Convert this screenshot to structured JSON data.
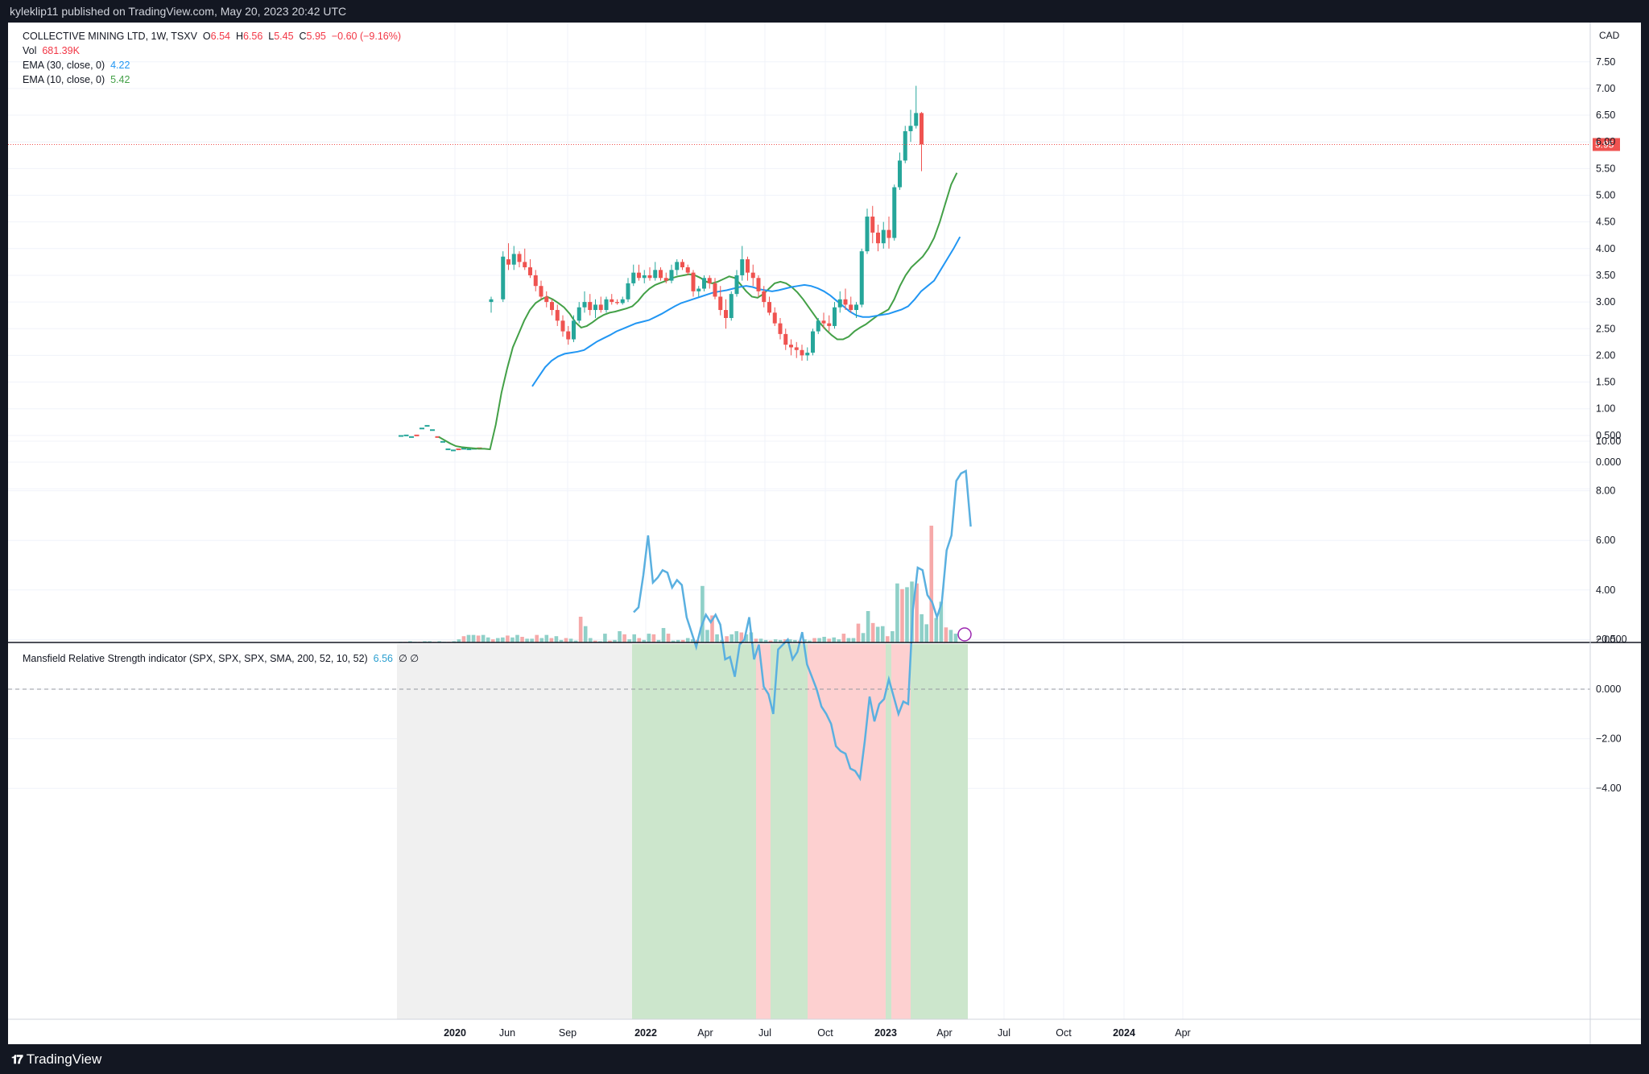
{
  "header": {
    "published": "kyleklip11 published on TradingView.com, May 20, 2023 20:42 UTC"
  },
  "footer": {
    "brand": "TradingView"
  },
  "legend": {
    "symbol_line": "COLLECTIVE MINING LTD, 1W, TSXV",
    "open_label": "O",
    "open": "6.54",
    "high_label": "H",
    "high": "6.56",
    "low_label": "L",
    "low": "5.45",
    "close_label": "C",
    "close": "5.95",
    "change": "−0.60 (−9.16%)",
    "vol_label": "Vol",
    "vol": "681.39K",
    "ema30_label": "EMA (30, close, 0)",
    "ema30": "4.22",
    "ema10_label": "EMA (10, close, 0)",
    "ema10": "5.42",
    "mrs_label": "Mansfield Relative Strength indicator (SPX, SPX, SPX, SMA, 200, 52, 10, 52)",
    "mrs_value": "6.56",
    "mrs_extra": "∅  ∅"
  },
  "chart_data": [
    {
      "type": "candlestick",
      "currency": "CAD",
      "last_price": "5.95",
      "price_ticks": [
        "7.50",
        "7.00",
        "6.50",
        "6.00",
        "5.50",
        "5.00",
        "4.50",
        "4.00",
        "3.50",
        "3.00",
        "2.50",
        "2.00",
        "1.50",
        "1.00",
        "0.500",
        "0.000",
        "−0.500"
      ],
      "x_tick_labels": [
        "2020",
        "Jun",
        "Sep",
        "2022",
        "Apr",
        "Jul",
        "Oct",
        "2023",
        "Apr",
        "Jul",
        "Oct",
        "2024",
        "Apr"
      ],
      "candles_ohlc": [
        [
          3.0,
          3.1,
          2.8,
          3.05
        ],
        [
          3.05,
          3.95,
          3.0,
          3.85
        ],
        [
          3.8,
          4.1,
          3.6,
          3.7
        ],
        [
          3.7,
          4.05,
          3.6,
          3.9
        ],
        [
          3.9,
          3.95,
          3.65,
          3.75
        ],
        [
          3.75,
          4.0,
          3.6,
          3.65
        ],
        [
          3.65,
          3.8,
          3.45,
          3.5
        ],
        [
          3.5,
          3.6,
          3.2,
          3.3
        ],
        [
          3.3,
          3.4,
          3.05,
          3.1
        ],
        [
          3.1,
          3.2,
          2.9,
          3.0
        ],
        [
          3.0,
          3.05,
          2.75,
          2.85
        ],
        [
          2.85,
          2.95,
          2.55,
          2.65
        ],
        [
          2.65,
          2.75,
          2.35,
          2.45
        ],
        [
          2.45,
          2.55,
          2.2,
          2.3
        ],
        [
          2.3,
          2.75,
          2.25,
          2.65
        ],
        [
          2.65,
          3.0,
          2.6,
          2.9
        ],
        [
          2.9,
          3.2,
          2.8,
          3.0
        ],
        [
          3.0,
          3.15,
          2.75,
          2.85
        ],
        [
          2.85,
          3.05,
          2.7,
          2.95
        ],
        [
          2.95,
          3.1,
          2.8,
          2.85
        ],
        [
          2.85,
          3.1,
          2.8,
          3.05
        ],
        [
          3.05,
          3.15,
          2.95,
          3.0
        ],
        [
          3.0,
          3.05,
          2.95,
          2.98
        ],
        [
          2.98,
          3.1,
          2.95,
          3.05
        ],
        [
          3.05,
          3.45,
          3.0,
          3.35
        ],
        [
          3.35,
          3.7,
          3.3,
          3.55
        ],
        [
          3.55,
          3.7,
          3.4,
          3.45
        ],
        [
          3.45,
          3.6,
          3.35,
          3.5
        ],
        [
          3.5,
          3.65,
          3.4,
          3.45
        ],
        [
          3.45,
          3.75,
          3.4,
          3.6
        ],
        [
          3.6,
          3.65,
          3.4,
          3.45
        ],
        [
          3.45,
          3.55,
          3.35,
          3.4
        ],
        [
          3.4,
          3.7,
          3.35,
          3.6
        ],
        [
          3.6,
          3.8,
          3.5,
          3.75
        ],
        [
          3.75,
          3.8,
          3.6,
          3.65
        ],
        [
          3.65,
          3.7,
          3.5,
          3.55
        ],
        [
          3.55,
          3.6,
          3.1,
          3.2
        ],
        [
          3.2,
          3.3,
          3.1,
          3.25
        ],
        [
          3.25,
          3.5,
          3.2,
          3.45
        ],
        [
          3.45,
          3.5,
          3.25,
          3.35
        ],
        [
          3.35,
          3.45,
          3.05,
          3.1
        ],
        [
          3.1,
          3.3,
          2.75,
          2.85
        ],
        [
          2.85,
          3.05,
          2.5,
          2.7
        ],
        [
          2.7,
          3.2,
          2.65,
          3.15
        ],
        [
          3.15,
          3.6,
          3.1,
          3.5
        ],
        [
          3.5,
          4.05,
          3.4,
          3.8
        ],
        [
          3.8,
          3.85,
          3.4,
          3.55
        ],
        [
          3.55,
          3.7,
          3.3,
          3.45
        ],
        [
          3.45,
          3.5,
          3.1,
          3.2
        ],
        [
          3.2,
          3.3,
          2.9,
          3.0
        ],
        [
          3.0,
          3.1,
          2.75,
          2.8
        ],
        [
          2.8,
          2.9,
          2.55,
          2.6
        ],
        [
          2.6,
          2.7,
          2.3,
          2.4
        ],
        [
          2.4,
          2.5,
          2.1,
          2.2
        ],
        [
          2.2,
          2.3,
          2.0,
          2.15
        ],
        [
          2.15,
          2.25,
          1.95,
          2.1
        ],
        [
          2.1,
          2.2,
          1.9,
          2.0
        ],
        [
          2.0,
          2.15,
          1.9,
          2.05
        ],
        [
          2.05,
          2.5,
          2.0,
          2.45
        ],
        [
          2.45,
          2.7,
          2.4,
          2.65
        ],
        [
          2.65,
          2.8,
          2.5,
          2.6
        ],
        [
          2.6,
          2.75,
          2.45,
          2.55
        ],
        [
          2.55,
          3.0,
          2.5,
          2.9
        ],
        [
          2.9,
          3.2,
          2.8,
          3.05
        ],
        [
          3.05,
          3.25,
          2.85,
          2.95
        ],
        [
          2.95,
          3.1,
          2.8,
          2.85
        ],
        [
          2.85,
          3.0,
          2.7,
          2.95
        ],
        [
          2.95,
          4.0,
          2.9,
          3.95
        ],
        [
          3.95,
          4.75,
          3.9,
          4.6
        ],
        [
          4.6,
          4.8,
          4.1,
          4.3
        ],
        [
          4.3,
          4.45,
          3.95,
          4.1
        ],
        [
          4.1,
          4.5,
          4.0,
          4.35
        ],
        [
          4.35,
          4.6,
          4.0,
          4.2
        ],
        [
          4.2,
          5.2,
          4.15,
          5.15
        ],
        [
          5.15,
          5.8,
          5.1,
          5.65
        ],
        [
          5.65,
          6.3,
          5.6,
          6.2
        ],
        [
          6.2,
          6.6,
          6.0,
          6.3
        ],
        [
          6.3,
          7.05,
          6.25,
          6.54
        ],
        [
          6.54,
          6.56,
          5.45,
          5.95
        ]
      ],
      "early_ticks": [
        0.49,
        0.5,
        0.47,
        0.5,
        0.63,
        0.68,
        0.6,
        0.47,
        0.38,
        0.24,
        0.22,
        0.24,
        0.25,
        0.24,
        0.25,
        0.26
      ],
      "ema10_values": [
        0.47,
        0.41,
        0.35,
        0.3,
        0.28,
        0.27,
        0.26,
        0.25,
        0.25,
        0.24,
        0.7,
        1.3,
        1.75,
        2.15,
        2.4,
        2.65,
        2.85,
        2.98,
        3.05,
        3.1,
        3.05,
        2.98,
        2.9,
        2.78,
        2.62,
        2.52,
        2.55,
        2.62,
        2.7,
        2.76,
        2.8,
        2.82,
        2.85,
        2.88,
        2.92,
        3.02,
        3.15,
        3.25,
        3.32,
        3.36,
        3.4,
        3.45,
        3.48,
        3.5,
        3.52,
        3.5,
        3.45,
        3.38,
        3.35,
        3.38,
        3.43,
        3.48,
        3.45,
        3.33,
        3.2,
        3.1,
        3.08,
        3.15,
        3.25,
        3.35,
        3.38,
        3.35,
        3.28,
        3.18,
        3.05,
        2.9,
        2.75,
        2.6,
        2.48,
        2.38,
        2.3,
        2.3,
        2.35,
        2.45,
        2.52,
        2.58,
        2.66,
        2.74,
        2.8,
        2.86,
        3.05,
        3.3,
        3.5,
        3.65,
        3.75,
        3.85,
        4.0,
        4.2,
        4.5,
        4.85,
        5.2,
        5.42
      ],
      "ema30_values": [
        1.42,
        1.6,
        1.78,
        1.9,
        1.98,
        2.03,
        2.05,
        2.07,
        2.1,
        2.18,
        2.26,
        2.32,
        2.38,
        2.45,
        2.5,
        2.55,
        2.6,
        2.63,
        2.66,
        2.72,
        2.78,
        2.85,
        2.92,
        2.98,
        3.02,
        3.06,
        3.1,
        3.14,
        3.18,
        3.2,
        3.22,
        3.25,
        3.28,
        3.3,
        3.28,
        3.24,
        3.22,
        3.2,
        3.22,
        3.25,
        3.28,
        3.3,
        3.32,
        3.3,
        3.26,
        3.2,
        3.12,
        3.02,
        2.92,
        2.82,
        2.75,
        2.72,
        2.72,
        2.74,
        2.76,
        2.78,
        2.82,
        2.86,
        2.92,
        3.05,
        3.2,
        3.3,
        3.4,
        3.6,
        3.8,
        4.0,
        4.22
      ],
      "volume_bars_M": [
        0.01,
        0.01,
        0.02,
        0.01,
        0.01,
        0.02,
        0.02,
        0.01,
        0.02,
        0.01,
        0.01,
        0.02,
        0.05,
        0.1,
        0.12,
        0.12,
        0.11,
        0.12,
        0.08,
        0.05,
        0.07,
        0.08,
        0.11,
        0.08,
        0.12,
        0.09,
        0.06,
        0.06,
        0.12,
        0.07,
        0.12,
        0.07,
        0.1,
        0.04,
        0.07,
        0.06,
        0.03,
        0.41,
        0.26,
        0.07,
        0.03,
        0.02,
        0.14,
        0.03,
        0.04,
        0.18,
        0.13,
        0.05,
        0.13,
        0.07,
        0.04,
        0.14,
        0.13,
        0.04,
        0.23,
        0.14,
        0.03,
        0.04,
        0.04,
        0.07,
        0.05,
        0.04,
        0.9,
        0.2,
        0.43,
        0.13,
        0.04,
        0.1,
        0.13,
        0.18,
        0.16,
        0.13,
        0.16,
        0.06,
        0.06,
        0.04,
        0.03,
        0.05,
        0.04,
        0.05,
        0.05,
        0.04,
        0.03,
        0.05,
        0.03,
        0.07,
        0.07,
        0.09,
        0.06,
        0.08,
        0.05,
        0.14,
        0.07,
        0.07,
        0.3,
        0.15,
        0.5,
        0.31,
        0.25,
        0.26,
        0.1,
        0.18,
        0.94,
        0.85,
        0.88,
        0.97,
        0.94,
        0.45,
        0.29,
        1.86,
        0.39,
        0.65,
        0.24,
        0.2,
        0.14
      ]
    },
    {
      "type": "line",
      "title": "Mansfield Relative Strength indicator",
      "y_ticks": [
        "10.00",
        "8.00",
        "6.00",
        "4.00",
        "2.00",
        "0.000",
        "−2.00",
        "−4.00"
      ],
      "values": [
        3.1,
        3.3,
        4.6,
        6.2,
        4.3,
        4.5,
        4.8,
        4.7,
        4.1,
        4.4,
        4.2,
        2.9,
        2.3,
        1.7,
        2.5,
        3.0,
        2.7,
        3.0,
        2.6,
        1.2,
        1.3,
        0.5,
        1.8,
        2.0,
        2.9,
        1.2,
        1.8,
        0.1,
        -0.2,
        -1.0,
        1.6,
        1.8,
        2.0,
        1.2,
        1.5,
        2.3,
        1.0,
        0.5,
        0.0,
        -0.7,
        -1.0,
        -1.4,
        -2.3,
        -2.5,
        -2.6,
        -3.2,
        -3.3,
        -3.6,
        -2.1,
        -0.3,
        -1.3,
        -0.6,
        -0.4,
        0.4,
        -0.3,
        -1.0,
        -0.5,
        -0.6,
        3.2,
        4.9,
        4.8,
        3.8,
        3.5,
        2.9,
        3.5,
        5.6,
        6.2,
        8.4,
        8.7,
        8.8,
        6.56
      ],
      "zones": [
        {
          "state": "neutral",
          "color": "#f0f0f0"
        },
        {
          "state": "positive",
          "color": "#cce6cc"
        },
        {
          "state": "negative",
          "color": "#fdd0d0"
        },
        {
          "state": "positive",
          "color": "#cce6cc"
        },
        {
          "state": "negative",
          "color": "#fdd0d0"
        },
        {
          "state": "positive",
          "color": "#cce6cc"
        },
        {
          "state": "negative",
          "color": "#fdd0d0"
        },
        {
          "state": "positive",
          "color": "#cce6cc"
        }
      ]
    }
  ],
  "colors": {
    "up": "#26a69a",
    "down": "#ef5350",
    "ema10": "#43a047",
    "ema30": "#2196f3",
    "mrs_line": "#5ab0e0",
    "last_price_tag": "#ef5350"
  }
}
